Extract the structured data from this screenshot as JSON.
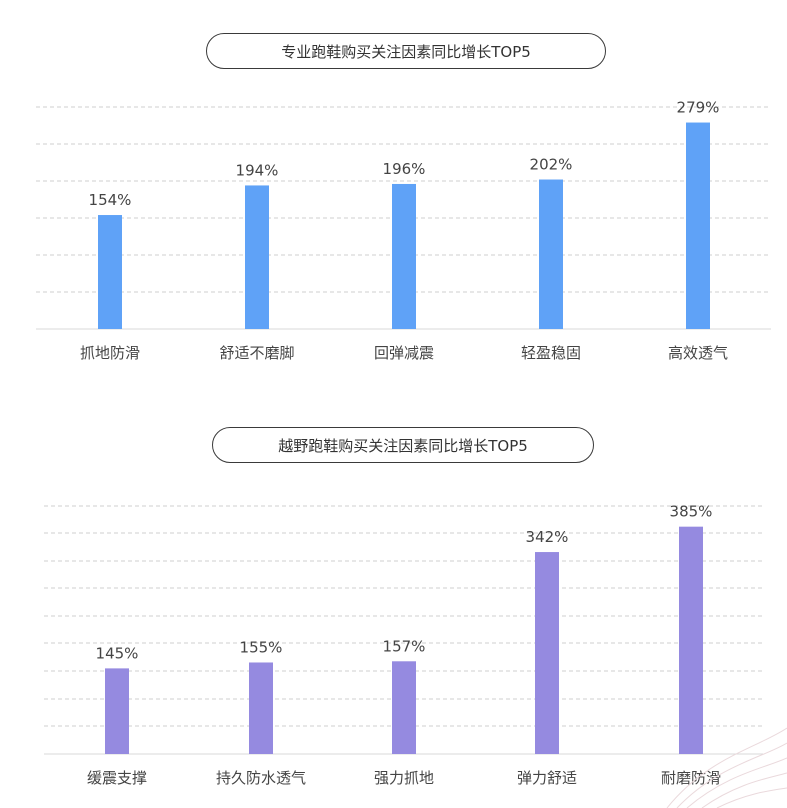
{
  "colors": {
    "series1": "#5fa2f7",
    "series2": "#958ae0",
    "grid": "#cfcfcf",
    "text": "#444444",
    "baseline": "#d9d9d9"
  },
  "chart_data": [
    {
      "type": "bar",
      "title": "专业跑鞋购买关注因素同比增长TOP5",
      "categories": [
        "抓地防滑",
        "舒适不磨脚",
        "回弹减震",
        "轻盈稳固",
        "高效透气"
      ],
      "values": [
        154,
        194,
        196,
        202,
        279
      ],
      "value_labels": [
        "154%",
        "194%",
        "196%",
        "202%",
        "279%"
      ],
      "ylim": [
        0,
        300
      ],
      "grid": true,
      "color": "#5fa2f7"
    },
    {
      "type": "bar",
      "title": "越野跑鞋购买关注因素同比增长TOP5",
      "categories": [
        "缓震支撑",
        "持久防水透气",
        "强力抓地",
        "弹力舒适",
        "耐磨防滑"
      ],
      "values": [
        145,
        155,
        157,
        342,
        385
      ],
      "value_labels": [
        "145%",
        "155%",
        "157%",
        "342%",
        "385%"
      ],
      "ylim": [
        0,
        420
      ],
      "grid": true,
      "color": "#958ae0"
    }
  ]
}
